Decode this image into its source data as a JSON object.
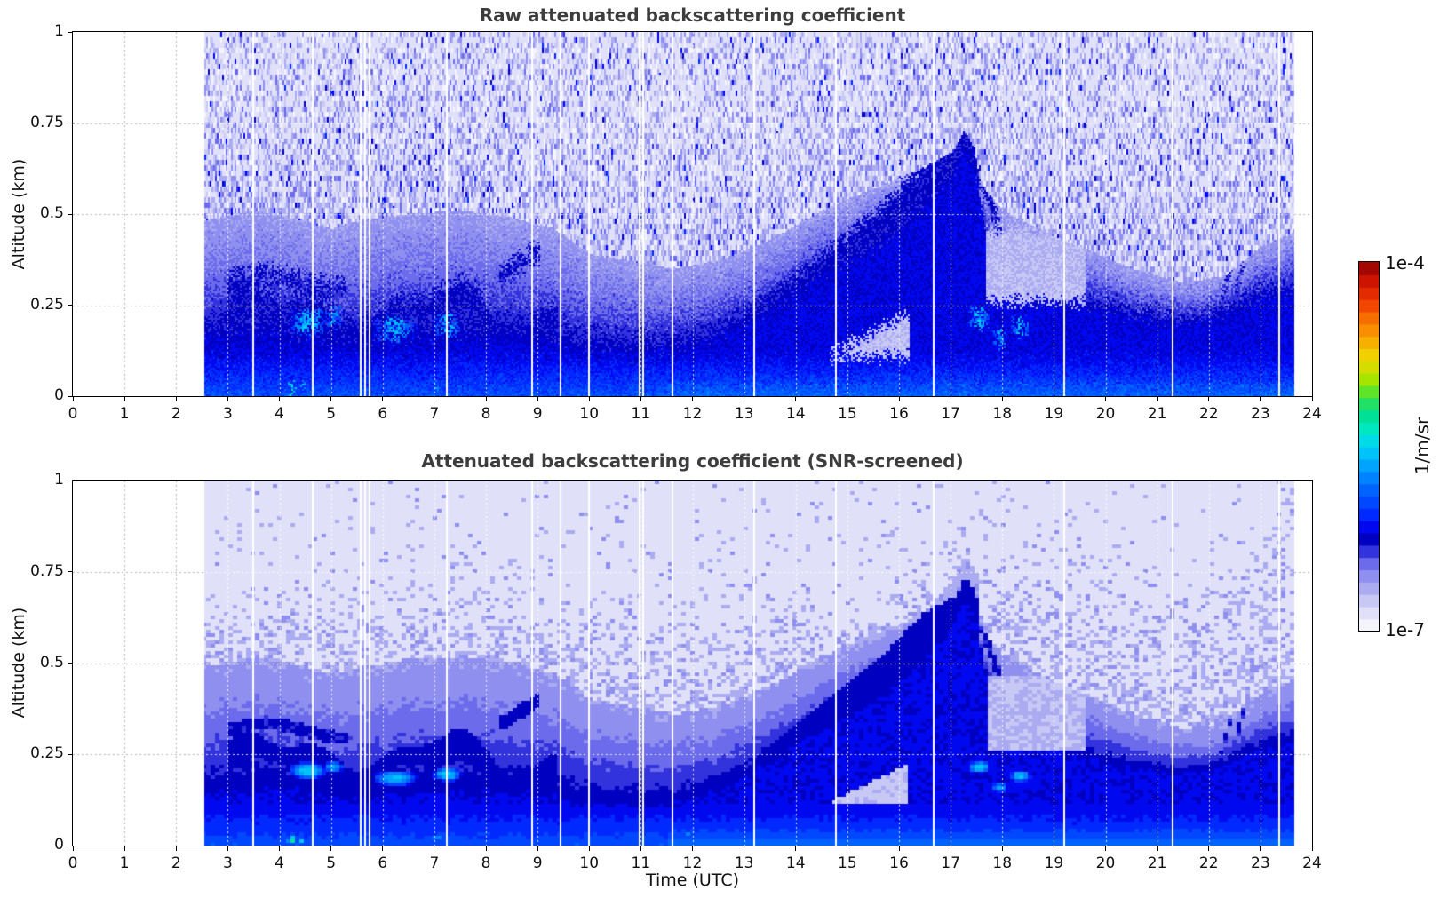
{
  "figure": {
    "background": "#ffffff",
    "title_color": "#3d3d3d"
  },
  "colorbar": {
    "label_top": "1e-4",
    "label_bottom": "1e-7",
    "unit_label": "1/m/sr",
    "scale": "log",
    "n_steps": 30,
    "stops": [
      [
        0.0,
        "#ffffff"
      ],
      [
        0.035,
        "#e8e8fb"
      ],
      [
        0.07,
        "#d5d5f7"
      ],
      [
        0.1,
        "#b8b8f2"
      ],
      [
        0.135,
        "#9d9df0"
      ],
      [
        0.17,
        "#7d7dee"
      ],
      [
        0.2,
        "#5555e8"
      ],
      [
        0.225,
        "#2222d8"
      ],
      [
        0.25,
        "#0000c0"
      ],
      [
        0.275,
        "#0000e8"
      ],
      [
        0.3,
        "#0018ff"
      ],
      [
        0.34,
        "#0040ff"
      ],
      [
        0.38,
        "#0060ff"
      ],
      [
        0.43,
        "#0090ff"
      ],
      [
        0.47,
        "#00b8ff"
      ],
      [
        0.51,
        "#00d8f0"
      ],
      [
        0.55,
        "#00e8c0"
      ],
      [
        0.59,
        "#00e090"
      ],
      [
        0.63,
        "#30e050"
      ],
      [
        0.67,
        "#90e800"
      ],
      [
        0.71,
        "#d0e000"
      ],
      [
        0.75,
        "#f0d000"
      ],
      [
        0.79,
        "#f8a800"
      ],
      [
        0.84,
        "#f87800"
      ],
      [
        0.89,
        "#f04000"
      ],
      [
        0.94,
        "#d81800"
      ],
      [
        1.0,
        "#900000"
      ]
    ]
  },
  "chart_data": [
    {
      "type": "heatmap",
      "title": "Raw attenuated backscattering coefficient",
      "xlabel": "",
      "ylabel": "Altitude (km)",
      "xlim": [
        0,
        24
      ],
      "ylim": [
        0,
        1
      ],
      "x_tick_values": [
        0,
        1,
        2,
        3,
        4,
        5,
        6,
        7,
        8,
        9,
        10,
        11,
        12,
        13,
        14,
        15,
        16,
        17,
        18,
        19,
        20,
        21,
        22,
        23,
        24
      ],
      "x_tick_labels": [
        "0",
        "1",
        "2",
        "3",
        "4",
        "5",
        "6",
        "7",
        "8",
        "9",
        "10",
        "11",
        "12",
        "13",
        "14",
        "15",
        "16",
        "17",
        "18",
        "19",
        "20",
        "21",
        "22",
        "23",
        "24"
      ],
      "y_tick_values": [
        0,
        0.25,
        0.5,
        0.75,
        1
      ],
      "y_tick_labels": [
        "0",
        "0.25",
        "0.5",
        "0.75",
        "1"
      ],
      "value_min": "1e-7",
      "value_max": "1e-4",
      "value_units": "1/m/sr",
      "grid": "dotted hourly vertical, 0.25 km horizontal",
      "noise_speckle": true,
      "data_time_start": 2.55,
      "data_time_end": 23.65,
      "gap_times": [
        3.5,
        4.65,
        5.58,
        5.66,
        5.74,
        7.25,
        8.9,
        9.45,
        10.0,
        10.97,
        11.05,
        11.62,
        13.2,
        14.78,
        16.67,
        19.2,
        21.3,
        23.37
      ],
      "structure": {
        "strong_layer_top_km": [
          [
            2.5,
            0.125
          ],
          [
            3.2,
            0.135
          ],
          [
            4.0,
            0.14
          ],
          [
            4.7,
            0.12
          ],
          [
            5.5,
            0.11
          ],
          [
            6.2,
            0.12
          ],
          [
            7.0,
            0.125
          ],
          [
            8.0,
            0.13
          ],
          [
            9.0,
            0.12
          ],
          [
            9.8,
            0.105
          ],
          [
            10.8,
            0.1
          ],
          [
            11.6,
            0.105
          ],
          [
            12.2,
            0.13
          ],
          [
            13.0,
            0.18
          ],
          [
            13.8,
            0.25
          ],
          [
            14.5,
            0.31
          ],
          [
            15.0,
            0.35
          ],
          [
            15.6,
            0.4
          ],
          [
            16.1,
            0.46
          ],
          [
            16.6,
            0.53
          ],
          [
            17.0,
            0.6
          ],
          [
            17.25,
            0.67
          ],
          [
            17.45,
            0.62
          ],
          [
            17.7,
            0.4
          ],
          [
            18.0,
            0.3
          ],
          [
            18.6,
            0.27
          ],
          [
            19.3,
            0.24
          ],
          [
            20.0,
            0.22
          ],
          [
            20.7,
            0.2
          ],
          [
            21.4,
            0.19
          ],
          [
            22.0,
            0.2
          ],
          [
            22.6,
            0.24
          ],
          [
            23.1,
            0.26
          ],
          [
            23.65,
            0.27
          ]
        ],
        "aerosol_layer_top_km": [
          [
            2.5,
            0.47
          ],
          [
            3.5,
            0.5
          ],
          [
            4.2,
            0.48
          ],
          [
            5.0,
            0.45
          ],
          [
            5.5,
            0.47
          ],
          [
            6.5,
            0.49
          ],
          [
            7.5,
            0.5
          ],
          [
            8.5,
            0.48
          ],
          [
            9.3,
            0.45
          ],
          [
            10.0,
            0.38
          ],
          [
            10.8,
            0.36
          ],
          [
            11.6,
            0.34
          ],
          [
            12.5,
            0.36
          ],
          [
            13.5,
            0.42
          ],
          [
            14.5,
            0.5
          ],
          [
            15.5,
            0.56
          ],
          [
            16.5,
            0.62
          ],
          [
            17.0,
            0.66
          ],
          [
            17.4,
            0.6
          ],
          [
            18.0,
            0.5
          ],
          [
            18.8,
            0.44
          ],
          [
            19.5,
            0.4
          ],
          [
            20.5,
            0.34
          ],
          [
            21.5,
            0.3
          ],
          [
            22.3,
            0.32
          ],
          [
            23.0,
            0.4
          ],
          [
            23.65,
            0.44
          ]
        ],
        "faint_layer_top_km": [
          [
            2.5,
            0.62
          ],
          [
            5.0,
            0.62
          ],
          [
            8.0,
            0.65
          ],
          [
            10.0,
            0.6
          ],
          [
            12.0,
            0.55
          ],
          [
            13.0,
            0.6
          ],
          [
            14.0,
            0.62
          ],
          [
            15.0,
            0.6
          ],
          [
            16.0,
            0.65
          ],
          [
            17.0,
            0.72
          ],
          [
            17.6,
            0.76
          ],
          [
            18.5,
            0.72
          ],
          [
            19.5,
            0.68
          ],
          [
            21.0,
            0.62
          ],
          [
            22.0,
            0.6
          ],
          [
            22.8,
            0.7
          ],
          [
            23.3,
            0.92
          ],
          [
            23.65,
            0.97
          ]
        ]
      },
      "hotspots": [
        [
          4.55,
          0.205,
          0.45,
          0.03,
          0.5
        ],
        [
          5.05,
          0.215,
          0.25,
          0.022,
          0.46
        ],
        [
          6.25,
          0.185,
          0.55,
          0.028,
          0.48
        ],
        [
          7.25,
          0.195,
          0.35,
          0.025,
          0.5
        ],
        [
          4.25,
          0.015,
          0.12,
          0.012,
          0.62
        ],
        [
          4.45,
          0.015,
          0.1,
          0.01,
          0.52
        ],
        [
          7.05,
          0.02,
          0.15,
          0.012,
          0.45
        ],
        [
          17.55,
          0.215,
          0.28,
          0.022,
          0.5
        ],
        [
          17.95,
          0.16,
          0.22,
          0.018,
          0.46
        ],
        [
          18.35,
          0.19,
          0.25,
          0.02,
          0.5
        ],
        [
          11.9,
          0.03,
          0.1,
          0.01,
          0.42
        ]
      ]
    },
    {
      "type": "heatmap",
      "title": "Attenuated backscattering coefficient (SNR-screened)",
      "xlabel": "Time (UTC)",
      "ylabel": "Altitude (km)",
      "xlim": [
        0,
        24
      ],
      "ylim": [
        0,
        1
      ],
      "x_tick_values": [
        0,
        1,
        2,
        3,
        4,
        5,
        6,
        7,
        8,
        9,
        10,
        11,
        12,
        13,
        14,
        15,
        16,
        17,
        18,
        19,
        20,
        21,
        22,
        23,
        24
      ],
      "x_tick_labels": [
        "0",
        "1",
        "2",
        "3",
        "4",
        "5",
        "6",
        "7",
        "8",
        "9",
        "10",
        "11",
        "12",
        "13",
        "14",
        "15",
        "16",
        "17",
        "18",
        "19",
        "20",
        "21",
        "22",
        "23",
        "24"
      ],
      "y_tick_values": [
        0,
        0.25,
        0.5,
        0.75,
        1
      ],
      "y_tick_labels": [
        "0",
        "0.25",
        "0.5",
        "0.75",
        "1"
      ],
      "value_min": "1e-7",
      "value_max": "1e-4",
      "value_units": "1/m/sr",
      "grid": "dotted hourly vertical, 0.25 km horizontal",
      "noise_speckle": false,
      "snr_screened": true,
      "same_field_as_panel_1": true,
      "data_time_start": 2.55,
      "data_time_end": 23.65
    }
  ]
}
